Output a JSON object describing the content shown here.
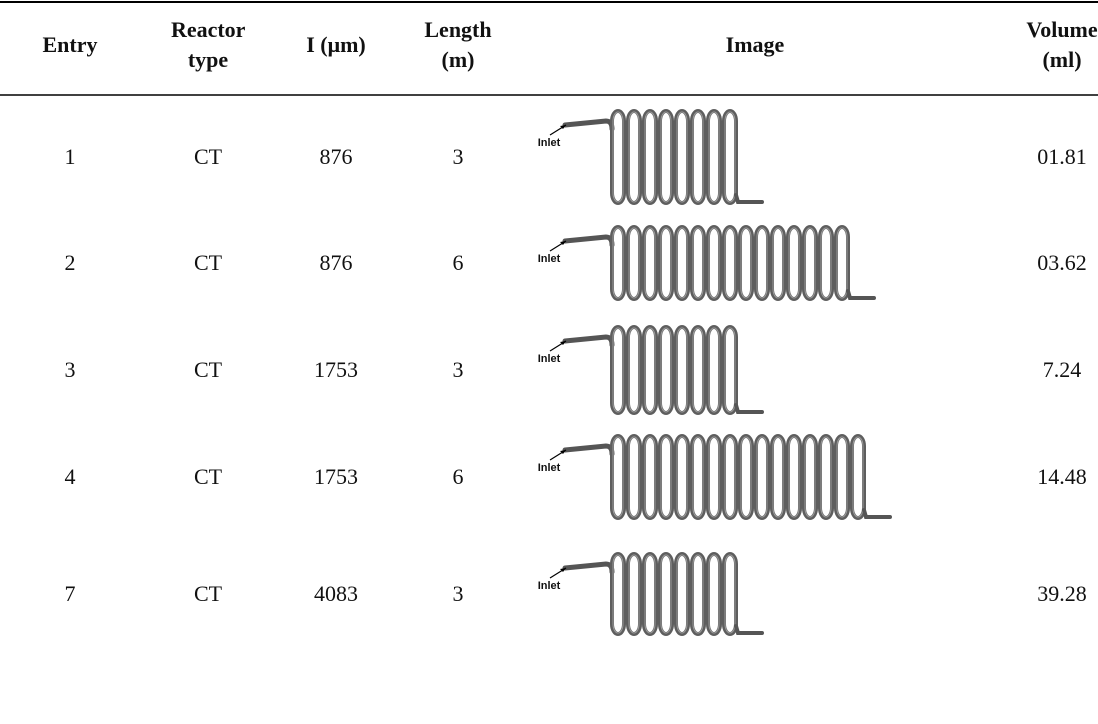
{
  "table": {
    "headers": [
      "Entry",
      "Reactor type",
      "I (μm)",
      "Length (m)",
      "Image",
      "Volume (ml)"
    ],
    "rows": [
      {
        "entry": "1",
        "reactor_type": "CT",
        "i": "876",
        "length": "3",
        "image_label": "Inlet",
        "volume": "01.81"
      },
      {
        "entry": "2",
        "reactor_type": "CT",
        "i": "876",
        "length": "6",
        "image_label": "Inlet",
        "volume": "03.62"
      },
      {
        "entry": "3",
        "reactor_type": "CT",
        "i": "1753",
        "length": "3",
        "image_label": "Inlet",
        "volume": "7.24"
      },
      {
        "entry": "4",
        "reactor_type": "CT",
        "i": "1753",
        "length": "6",
        "image_label": "Inlet",
        "volume": "14.48"
      },
      {
        "entry": "7",
        "reactor_type": "CT",
        "i": "4083",
        "length": "3",
        "image_label": "Inlet",
        "volume": "39.28"
      }
    ]
  }
}
